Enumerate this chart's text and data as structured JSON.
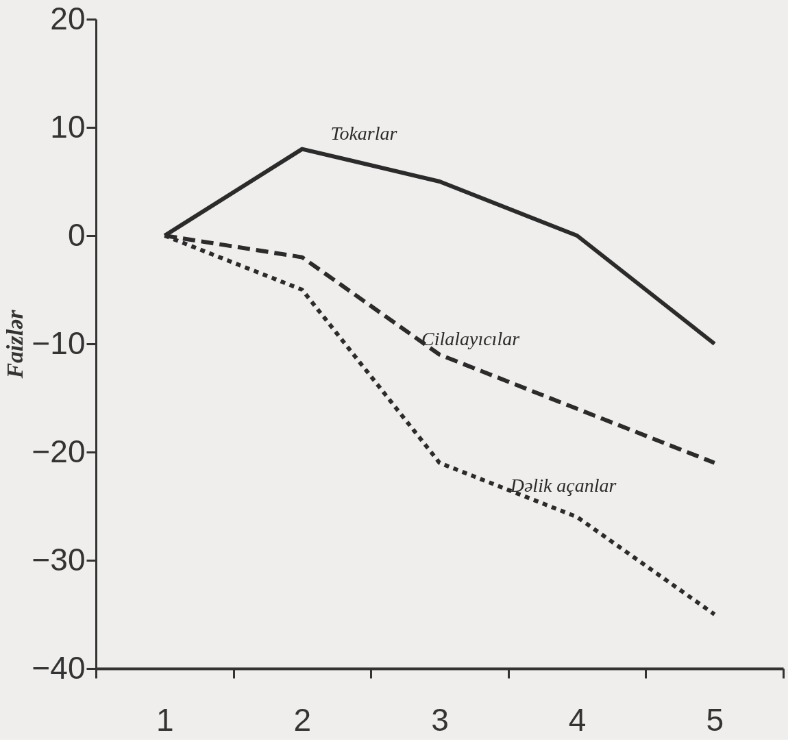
{
  "chart_data": {
    "type": "line",
    "ylabel": "Faizlər",
    "categories": [
      "1",
      "2",
      "3",
      "4",
      "5"
    ],
    "series": [
      {
        "name": "Tokarlar",
        "color": "#2b2b2b",
        "line_style": "solid",
        "values": [
          0,
          8,
          5,
          0,
          -10
        ]
      },
      {
        "name": "Cilalayıcılar",
        "color": "#2b2b2b",
        "line_style": "dashed",
        "values": [
          0,
          -2,
          -11,
          -16,
          -21
        ]
      },
      {
        "name": "Dəlik açanlar",
        "color": "#2b2b2b",
        "line_style": "dotted",
        "values": [
          0,
          -5,
          -21,
          -26,
          -35
        ]
      }
    ],
    "ylim": [
      -40,
      20
    ],
    "yticks": [
      -40,
      -30,
      -20,
      -10,
      0,
      10,
      20
    ],
    "grid": false,
    "marker": "none"
  }
}
